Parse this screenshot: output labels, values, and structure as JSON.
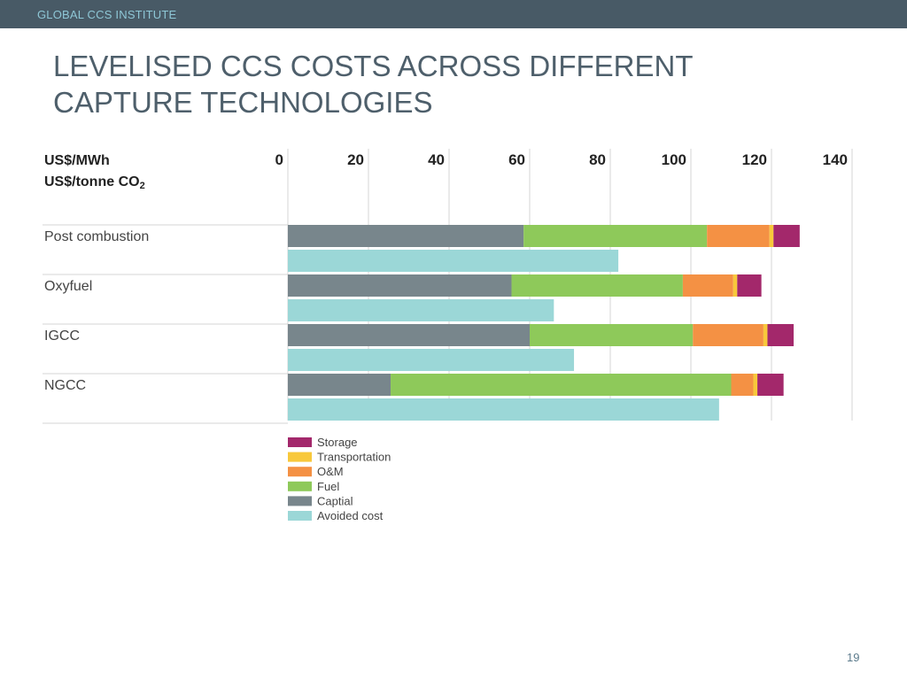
{
  "header": {
    "org": "GLOBAL CCS INSTITUTE"
  },
  "slide": {
    "title_line1": "LEVELISED CCS COSTS ACROSS DIFFERENT",
    "title_line2": "CAPTURE TECHNOLOGIES",
    "page_number": "19"
  },
  "chart_data": {
    "type": "bar",
    "orientation": "horizontal",
    "stacked": true,
    "unit_label_1": "US$/MWh",
    "unit_label_2": "US$/tonne CO",
    "unit_label_2_subscript": "2",
    "xlim": [
      0,
      140
    ],
    "xticks": [
      0,
      20,
      40,
      60,
      80,
      100,
      120,
      140
    ],
    "grid": true,
    "legend_position": "bottom",
    "categories": [
      "Post combustion",
      "Oxyfuel",
      "IGCC",
      "NGCC"
    ],
    "series": [
      {
        "name": "Captial",
        "color": "#78868c",
        "values": [
          58.5,
          55.5,
          60,
          25.5
        ]
      },
      {
        "name": "Fuel",
        "color": "#8ec95a",
        "values": [
          45.5,
          42.5,
          40.5,
          84.5
        ]
      },
      {
        "name": "O&M",
        "color": "#f49144",
        "values": [
          15.5,
          12.5,
          17.5,
          5.5
        ]
      },
      {
        "name": "Transportation",
        "color": "#f8c83b",
        "values": [
          1,
          1,
          1,
          1
        ]
      },
      {
        "name": "Storage",
        "color": "#a3286b",
        "values": [
          6.5,
          6,
          6.5,
          6.5
        ]
      }
    ],
    "avoided_cost": {
      "name": "Avoided cost",
      "color": "#9bd7d7",
      "values": [
        82,
        66,
        71,
        107
      ]
    },
    "legend": [
      {
        "name": "Storage",
        "color": "#a3286b"
      },
      {
        "name": "Transportation",
        "color": "#f8c83b"
      },
      {
        "name": "O&M",
        "color": "#f49144"
      },
      {
        "name": "Fuel",
        "color": "#8ec95a"
      },
      {
        "name": "Captial",
        "color": "#78868c"
      },
      {
        "name": "Avoided cost",
        "color": "#9bd7d7"
      }
    ]
  }
}
